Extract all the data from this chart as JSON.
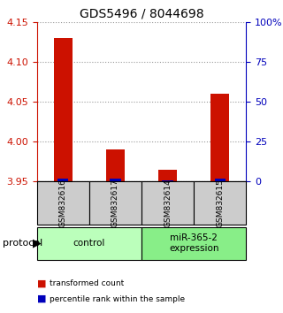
{
  "title": "GDS5496 / 8044698",
  "samples": [
    "GSM832616",
    "GSM832617",
    "GSM832614",
    "GSM832615"
  ],
  "groups": [
    {
      "label": "control",
      "color": "#bbffbb",
      "samples": [
        0,
        1
      ]
    },
    {
      "label": "miR-365-2\nexpression",
      "color": "#88ee88",
      "samples": [
        2,
        3
      ]
    }
  ],
  "ylim_left": [
    3.95,
    4.15
  ],
  "yticks_left": [
    3.95,
    4.0,
    4.05,
    4.1,
    4.15
  ],
  "yticks_right": [
    0,
    25,
    50,
    75,
    100
  ],
  "ylim_right": [
    0,
    100
  ],
  "red_values": [
    4.13,
    3.99,
    3.965,
    4.06
  ],
  "blue_values_pct": [
    2,
    2,
    1,
    2
  ],
  "bar_width": 0.35,
  "red_color": "#cc1100",
  "blue_color": "#0000bb",
  "left_label_color": "#cc1100",
  "right_label_color": "#0000bb",
  "grid_color": "#999999",
  "sample_bg_color": "#cccccc",
  "baseline": 3.95
}
